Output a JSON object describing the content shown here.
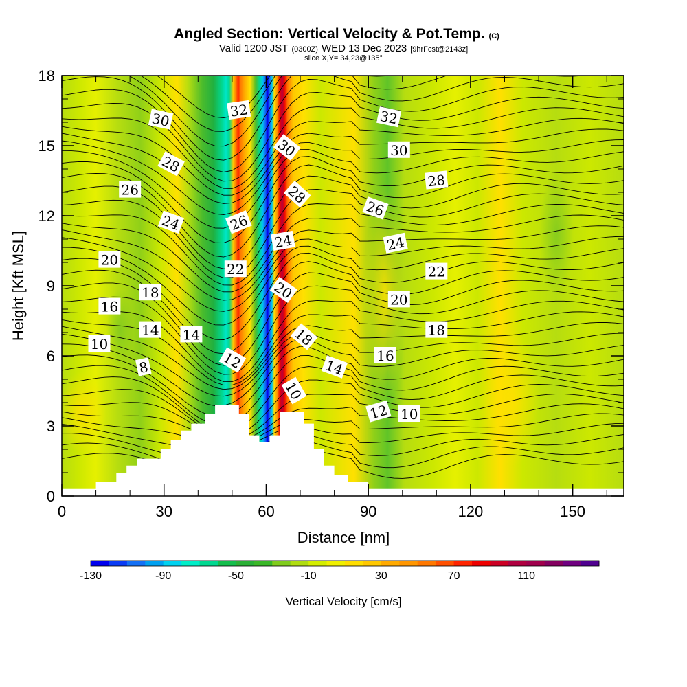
{
  "chart_data": {
    "type": "heatmap",
    "title": "Angled Section: Vertical Velocity & Pot.Temp.",
    "title_unit": "(C)",
    "subtitle": {
      "part1": "Valid 1200 JST",
      "part2": "(0300Z)",
      "part3": "WED 13 Dec 2023",
      "part4": "[9hrFcst@2143z]"
    },
    "slice_info": "slice X,Y= 34,23@135°",
    "xlabel": "Distance [nm]",
    "ylabel": "Height [Kft MSL]",
    "xlim": [
      0,
      165
    ],
    "ylim": [
      0,
      18
    ],
    "x_ticks": [
      0,
      30,
      60,
      90,
      120,
      150
    ],
    "y_ticks": [
      0,
      3,
      6,
      9,
      12,
      15,
      18
    ],
    "x_tick_labels": [
      "0",
      "30",
      "60",
      "90",
      "120",
      "150"
    ],
    "y_tick_labels": [
      "0",
      "3",
      "6",
      "9",
      "12",
      "15",
      "18"
    ],
    "terrain": [
      [
        0,
        0.3
      ],
      [
        10,
        0.3
      ],
      [
        10,
        0.6
      ],
      [
        16,
        0.6
      ],
      [
        16,
        1.0
      ],
      [
        19,
        1.0
      ],
      [
        19,
        1.3
      ],
      [
        22,
        1.3
      ],
      [
        22,
        1.6
      ],
      [
        29,
        1.6
      ],
      [
        29,
        2.0
      ],
      [
        32,
        2.0
      ],
      [
        32,
        2.4
      ],
      [
        35,
        2.4
      ],
      [
        35,
        2.8
      ],
      [
        38,
        2.8
      ],
      [
        38,
        3.1
      ],
      [
        42,
        3.1
      ],
      [
        42,
        3.5
      ],
      [
        45,
        3.5
      ],
      [
        45,
        3.9
      ],
      [
        52,
        3.9
      ],
      [
        52,
        3.5
      ],
      [
        55,
        3.5
      ],
      [
        55,
        2.6
      ],
      [
        58,
        2.6
      ],
      [
        58,
        2.3
      ],
      [
        61,
        2.3
      ],
      [
        61,
        2.6
      ],
      [
        64,
        2.6
      ],
      [
        64,
        3.6
      ],
      [
        71,
        3.6
      ],
      [
        71,
        3.1
      ],
      [
        74,
        3.1
      ],
      [
        74,
        2.0
      ],
      [
        77,
        2.0
      ],
      [
        77,
        1.3
      ],
      [
        80,
        1.3
      ],
      [
        80,
        0.9
      ],
      [
        84,
        0.9
      ],
      [
        84,
        0.6
      ],
      [
        90,
        0.6
      ],
      [
        90,
        0.3
      ],
      [
        165,
        0.3
      ]
    ],
    "colorbar": {
      "label": "Vertical Velocity [cm/s]",
      "min": -130,
      "max": 150,
      "step": 10,
      "tick_values": [
        -130,
        -90,
        -50,
        -10,
        30,
        70,
        110
      ],
      "tick_labels": [
        "-130",
        "-90",
        "-50",
        "-10",
        "30",
        "70",
        "110"
      ],
      "colors": [
        "#0000ee",
        "#0a3cf5",
        "#1470f5",
        "#00a0f0",
        "#00d2f0",
        "#00eec8",
        "#00d890",
        "#14be4c",
        "#2ab036",
        "#3ab828",
        "#80cc1c",
        "#b0dd10",
        "#d4ee00",
        "#f0f000",
        "#ffde00",
        "#ffc800",
        "#ffaa00",
        "#ff9600",
        "#ff7800",
        "#ff5000",
        "#ff2400",
        "#ee0000",
        "#cc0024",
        "#b00040",
        "#a0004c",
        "#840060",
        "#700080",
        "#500090"
      ]
    },
    "contour_labels": [
      {
        "text": "32",
        "x": 52,
        "y": 16.5,
        "rot": -8
      },
      {
        "text": "32",
        "x": 96,
        "y": 16.2,
        "rot": 12
      },
      {
        "text": "30",
        "x": 29,
        "y": 16.1,
        "rot": 12
      },
      {
        "text": "30",
        "x": 66,
        "y": 14.9,
        "rot": 38
      },
      {
        "text": "30",
        "x": 99,
        "y": 14.8,
        "rot": 0
      },
      {
        "text": "28",
        "x": 32,
        "y": 14.2,
        "rot": 28
      },
      {
        "text": "28",
        "x": 69,
        "y": 12.9,
        "rot": 42
      },
      {
        "text": "28",
        "x": 110,
        "y": 13.5,
        "rot": -6
      },
      {
        "text": "26",
        "x": 20,
        "y": 13.1,
        "rot": 0
      },
      {
        "text": "26",
        "x": 52,
        "y": 11.7,
        "rot": -22
      },
      {
        "text": "26",
        "x": 92,
        "y": 12.3,
        "rot": 20
      },
      {
        "text": "24",
        "x": 32,
        "y": 11.7,
        "rot": 20
      },
      {
        "text": "24",
        "x": 65,
        "y": 10.9,
        "rot": -10
      },
      {
        "text": "24",
        "x": 98,
        "y": 10.8,
        "rot": -12
      },
      {
        "text": "22",
        "x": 51,
        "y": 9.7,
        "rot": 0
      },
      {
        "text": "22",
        "x": 110,
        "y": 9.6,
        "rot": 0
      },
      {
        "text": "20",
        "x": 14,
        "y": 10.1,
        "rot": 0
      },
      {
        "text": "20",
        "x": 65,
        "y": 8.8,
        "rot": 35
      },
      {
        "text": "20",
        "x": 99,
        "y": 8.4,
        "rot": 0
      },
      {
        "text": "18",
        "x": 26,
        "y": 8.7,
        "rot": 0
      },
      {
        "text": "18",
        "x": 71,
        "y": 6.8,
        "rot": 40
      },
      {
        "text": "18",
        "x": 110,
        "y": 7.1,
        "rot": 0
      },
      {
        "text": "16",
        "x": 14,
        "y": 8.1,
        "rot": 0
      },
      {
        "text": "16",
        "x": 95,
        "y": 6.0,
        "rot": 0
      },
      {
        "text": "14",
        "x": 26,
        "y": 7.1,
        "rot": 0
      },
      {
        "text": "14",
        "x": 38,
        "y": 6.9,
        "rot": 0
      },
      {
        "text": "14",
        "x": 80,
        "y": 5.5,
        "rot": 20
      },
      {
        "text": "12",
        "x": 50,
        "y": 5.8,
        "rot": 30
      },
      {
        "text": "12",
        "x": 93,
        "y": 3.6,
        "rot": -16
      },
      {
        "text": "10",
        "x": 11,
        "y": 6.5,
        "rot": 0
      },
      {
        "text": "10",
        "x": 68,
        "y": 4.5,
        "rot": 60
      },
      {
        "text": "10",
        "x": 102,
        "y": 3.5,
        "rot": 0
      },
      {
        "text": "8",
        "x": 24,
        "y": 5.5,
        "rot": -12
      }
    ]
  }
}
